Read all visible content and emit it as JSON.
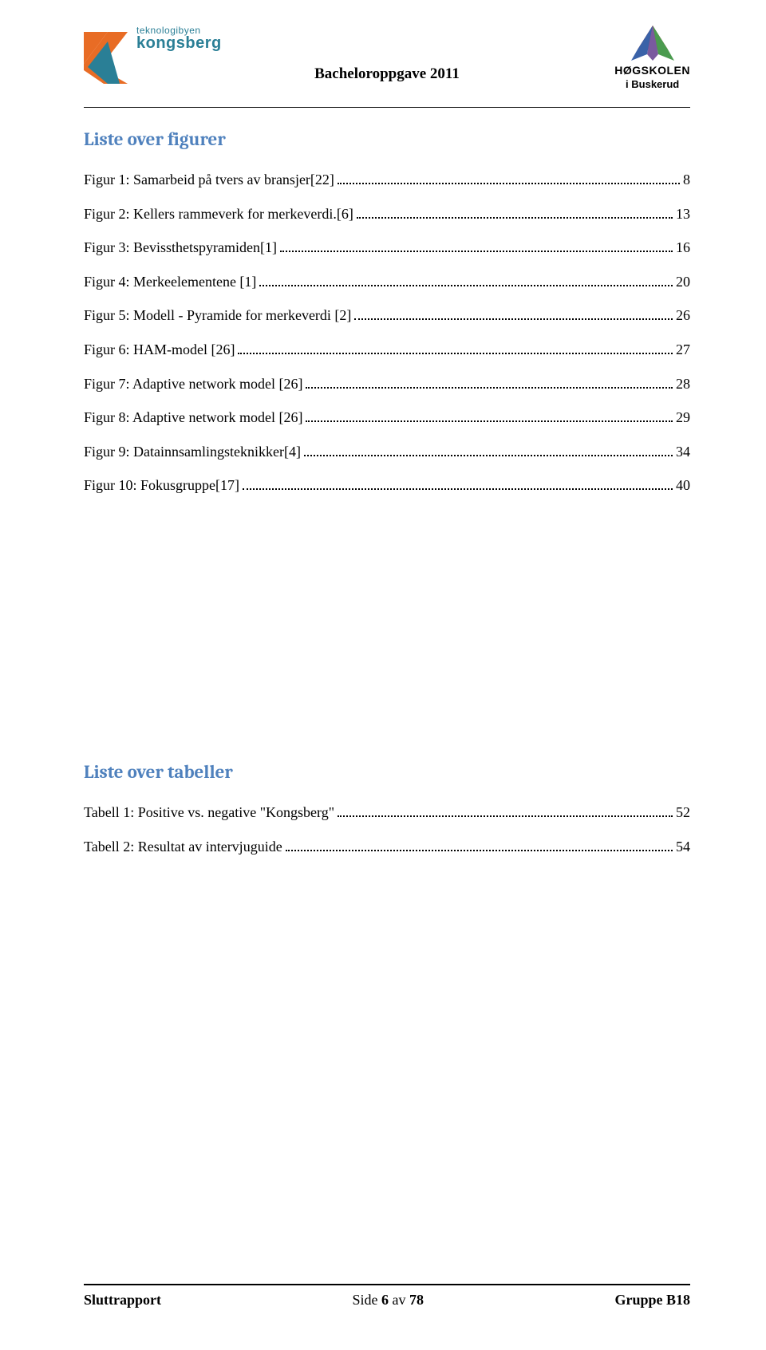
{
  "header": {
    "title": "Bacheloroppgave 2011",
    "logo_left": {
      "line1": "teknologibyen",
      "line2": "kongsberg",
      "color1": "#2a7f96",
      "color2": "#2a7f96",
      "accent": "#e86c25"
    },
    "logo_right": {
      "line1": "HØGSKOLEN",
      "line2": "i Buskerud"
    }
  },
  "figures": {
    "title": "Liste over figurer",
    "rows": [
      {
        "label": "Figur 1: Samarbeid på tvers av bransjer[22]",
        "page": "8"
      },
      {
        "label": "Figur 2: Kellers rammeverk for merkeverdi.[6]",
        "page": "13"
      },
      {
        "label": "Figur 3: Bevissthetspyramiden[1]",
        "page": "16"
      },
      {
        "label": "Figur 4: Merkeelementene [1]",
        "page": "20"
      },
      {
        "label": "Figur 5: Modell - Pyramide for merkeverdi [2]",
        "page": "26"
      },
      {
        "label": "Figur 6: HAM-model [26]",
        "page": "27"
      },
      {
        "label": "Figur 7: Adaptive network model [26]",
        "page": "28"
      },
      {
        "label": "Figur 8: Adaptive network model [26]",
        "page": "29"
      },
      {
        "label": "Figur 9: Datainnsamlingsteknikker[4]",
        "page": "34"
      },
      {
        "label": "Figur 10: Fokusgruppe[17]",
        "page": "40"
      }
    ]
  },
  "tables": {
    "title": "Liste over tabeller",
    "rows": [
      {
        "label": "Tabell 1: Positive vs. negative \"Kongsberg\"",
        "page": "52"
      },
      {
        "label": "Tabell 2: Resultat av intervjuguide",
        "page": "54"
      }
    ]
  },
  "footer": {
    "left": "Sluttrapport",
    "center_prefix": "Side ",
    "center_num": "6",
    "center_mid": " av ",
    "center_total": "78",
    "right": "Gruppe B18"
  }
}
